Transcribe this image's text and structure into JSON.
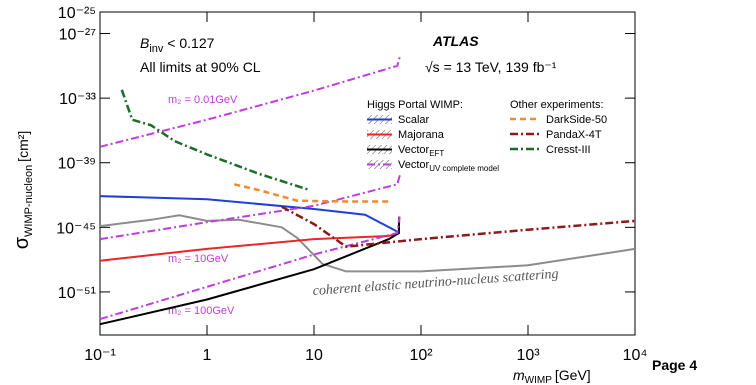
{
  "chart_data": {
    "type": "line",
    "x_label": {
      "symbol": "m",
      "sub": "WIMP",
      "unit": "[GeV]"
    },
    "y_label": {
      "symbol": "σ",
      "sub": "WIMP-nucleon",
      "unit": "[cm²]"
    },
    "log_x": true,
    "log_y": true,
    "xlim": [
      0.1,
      10000
    ],
    "ylim": [
      1e-55,
      1e-25
    ],
    "xticks": [
      {
        "value": 0.1,
        "label": "10⁻¹"
      },
      1,
      10,
      {
        "value": 100,
        "label": "10²"
      },
      {
        "value": 1000,
        "label": "10³"
      },
      {
        "value": 10000,
        "label": "10⁴"
      }
    ],
    "yticks": [
      {
        "value": 1e-25,
        "label": "10⁻²⁵"
      },
      {
        "value": 1e-27,
        "label": "10⁻²⁷"
      },
      {
        "value": 1e-33,
        "label": "10⁻³³"
      },
      {
        "value": 1e-39,
        "label": "10⁻³⁹"
      },
      {
        "value": 1e-45,
        "label": "10⁻⁴⁵"
      },
      {
        "value": 1e-51,
        "label": "10⁻⁵¹"
      }
    ],
    "annotations": {
      "binv": {
        "symbol": "B",
        "sub": "inv",
        "text": " < 0.127"
      },
      "cl": "All limits at 90% CL",
      "experiment": "ATLAS",
      "energy": "√s = 13 TeV, 139 fb⁻¹",
      "m2_low": "m₂ = 0.01GeV",
      "m2_mid": "m₂ = 10GeV",
      "m2_high": "m₂ = 100GeV",
      "page": "Page 4"
    },
    "series_groups": [
      {
        "title": "Higgs Portal WIMP:",
        "style": "band",
        "series": [
          {
            "name": "Scalar",
            "color": "#1f3fd6",
            "dash": "solid",
            "x": [
              0.1,
              1,
              10,
              30,
              60
            ],
            "values": [
              8e-43,
              4e-43,
              5e-44,
              1.5e-44,
              4e-46
            ]
          },
          {
            "name": "Majorana",
            "color": "#e8262b",
            "dash": "solid",
            "x": [
              0.1,
              1,
              10,
              50,
              62,
              62.5
            ],
            "values": [
              8e-49,
              1e-47,
              8e-47,
              1.6e-46,
              3e-46,
              1e-44
            ]
          },
          {
            "name": "Vector",
            "sub": "EFT",
            "color": "#000000",
            "dash": "solid",
            "x": [
              0.1,
              1,
              10,
              50,
              62,
              62.5
            ],
            "values": [
              1e-54,
              2e-52,
              1.3e-49,
              8e-47,
              3e-46,
              1e-44
            ]
          },
          {
            "name": "Vector",
            "sub": "UV complete model",
            "color": "#c03ce0",
            "dash": "dashdot",
            "x": [
              0.1,
              1,
              10,
              60,
              64,
              null,
              0.1,
              1,
              10,
              60,
              64,
              null,
              0.1,
              1,
              10,
              60,
              63
            ],
            "values": [
              3e-38,
              1e-35,
              5e-33,
              1e-30,
              1e-29,
              null,
              8e-47,
              3e-45,
              1e-43,
              1e-41,
              1e-40,
              null,
              3e-54,
              3e-51,
              3e-48,
              3e-46,
              1e-44
            ]
          }
        ]
      },
      {
        "title": "Other experiments:",
        "style": "line",
        "series": [
          {
            "name": "DarkSide-50",
            "color": "#f08a2c",
            "dash": "dashed",
            "x": [
              1.8,
              3,
              7,
              20,
              50
            ],
            "values": [
              1e-41,
              3e-42,
              3e-43,
              2.5e-43,
              2.5e-43
            ]
          },
          {
            "name": "PandaX-4T",
            "color": "#8b1a1a",
            "dash": "dashdot",
            "x": [
              5,
              10,
              20,
              100,
              1000,
              10000
            ],
            "values": [
              8e-44,
              2e-45,
              1.6e-47,
              8e-47,
              6e-46,
              4e-45
            ]
          },
          {
            "name": "Cresst-III",
            "color": "#1e6b2a",
            "dash": "dashdot",
            "x": [
              0.16,
              0.2,
              0.3,
              0.5,
              1,
              3,
              9
            ],
            "values": [
              6e-33,
              1e-35,
              3e-36,
              1e-37,
              6e-39,
              1e-40,
              3e-42
            ]
          }
        ]
      }
    ],
    "floor": {
      "label": "coherent elastic neutrino-nucleus scattering",
      "color": "#8c8c8c",
      "x": [
        0.1,
        0.3,
        0.55,
        1,
        2,
        5,
        7,
        12,
        20,
        100,
        1000,
        10000
      ],
      "values": [
        1.3e-45,
        5e-45,
        1.3e-44,
        4e-45,
        5e-45,
        1e-45,
        1e-46,
        4e-49,
        8e-50,
        8e-50,
        3e-49,
        1e-47
      ]
    }
  }
}
